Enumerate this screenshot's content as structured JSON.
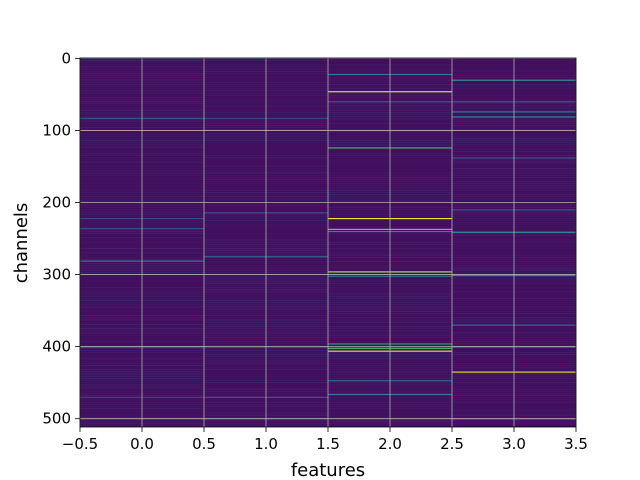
{
  "chart_data": {
    "type": "heatmap",
    "title": "",
    "xlabel": "features",
    "ylabel": "channels",
    "x_columns": [
      0,
      1,
      2,
      3
    ],
    "xlim": [
      -0.5,
      3.5
    ],
    "ylim": [
      511.5,
      -0.5
    ],
    "n_rows": 512,
    "y_inverted": true,
    "x_ticks": [
      -0.5,
      0.0,
      0.5,
      1.0,
      1.5,
      2.0,
      2.5,
      3.0,
      3.5
    ],
    "x_tick_labels": [
      "−0.5",
      "0.0",
      "0.5",
      "1.0",
      "1.5",
      "2.0",
      "2.5",
      "3.0",
      "3.5"
    ],
    "y_ticks": [
      0,
      100,
      200,
      300,
      400,
      500
    ],
    "y_tick_labels": [
      "0",
      "100",
      "200",
      "300",
      "400",
      "500"
    ],
    "grid": true,
    "colormap": "viridis",
    "value_range": [
      0,
      1
    ],
    "background_value": 0.04,
    "bright_cells": [
      {
        "column": 0,
        "row": 83,
        "value": 0.28
      },
      {
        "column": 0,
        "row": 222,
        "value": 0.22
      },
      {
        "column": 0,
        "row": 236,
        "value": 0.25
      },
      {
        "column": 0,
        "row": 281,
        "value": 0.45
      },
      {
        "column": 0,
        "row": 400,
        "value": 0.55
      },
      {
        "column": 0,
        "row": 470,
        "value": 0.22
      },
      {
        "column": 1,
        "row": 83,
        "value": 0.22
      },
      {
        "column": 1,
        "row": 214,
        "value": 0.25
      },
      {
        "column": 1,
        "row": 275,
        "value": 0.35
      },
      {
        "column": 1,
        "row": 400,
        "value": 0.5
      },
      {
        "column": 1,
        "row": 470,
        "value": 0.28
      },
      {
        "column": 1,
        "row": 500,
        "value": 0.22
      },
      {
        "column": 2,
        "row": 22,
        "value": 0.4
      },
      {
        "column": 2,
        "row": 46,
        "value": 0.95
      },
      {
        "column": 2,
        "row": 60,
        "value": 0.3
      },
      {
        "column": 2,
        "row": 124,
        "value": 0.65
      },
      {
        "column": 2,
        "row": 222,
        "value": 0.98
      },
      {
        "column": 2,
        "row": 237,
        "value": 0.78
      },
      {
        "column": 2,
        "row": 240,
        "value": 0.5
      },
      {
        "column": 2,
        "row": 296,
        "value": 0.9
      },
      {
        "column": 2,
        "row": 302,
        "value": 0.4
      },
      {
        "column": 2,
        "row": 396,
        "value": 0.55
      },
      {
        "column": 2,
        "row": 402,
        "value": 0.7
      },
      {
        "column": 2,
        "row": 406,
        "value": 0.95
      },
      {
        "column": 2,
        "row": 447,
        "value": 0.35
      },
      {
        "column": 2,
        "row": 466,
        "value": 0.4
      },
      {
        "column": 3,
        "row": 30,
        "value": 0.55
      },
      {
        "column": 3,
        "row": 60,
        "value": 0.3
      },
      {
        "column": 3,
        "row": 74,
        "value": 0.45
      },
      {
        "column": 3,
        "row": 81,
        "value": 0.5
      },
      {
        "column": 3,
        "row": 138,
        "value": 0.3
      },
      {
        "column": 3,
        "row": 210,
        "value": 0.3
      },
      {
        "column": 3,
        "row": 241,
        "value": 0.55
      },
      {
        "column": 3,
        "row": 301,
        "value": 0.5
      },
      {
        "column": 3,
        "row": 370,
        "value": 0.3
      },
      {
        "column": 3,
        "row": 400,
        "value": 0.6
      },
      {
        "column": 3,
        "row": 435,
        "value": 0.95
      },
      {
        "column": 3,
        "row": 500,
        "value": 0.35
      }
    ]
  }
}
